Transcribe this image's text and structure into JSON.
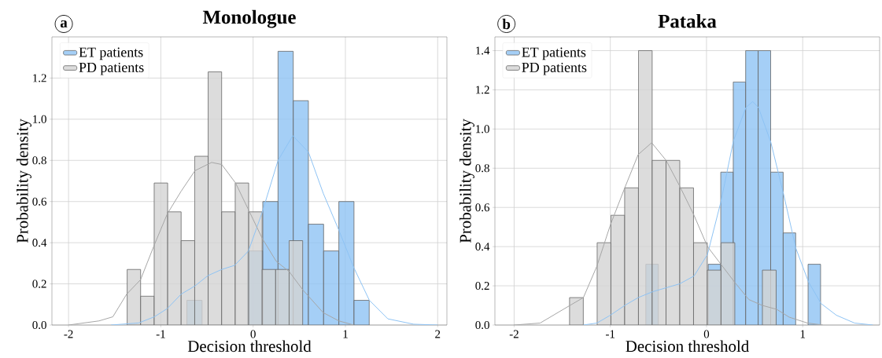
{
  "chart_data": [
    {
      "type": "histogram",
      "title": "Monologue",
      "xlabel": "Decision threshold",
      "ylabel": "Probability density",
      "annotations": [
        "a"
      ],
      "legend": "top left",
      "grid": true,
      "xlim": [
        -2.18,
        2.1
      ],
      "ylim": [
        0,
        1.4
      ],
      "xticks": [
        -2,
        -1,
        0,
        1,
        2
      ],
      "yticks": [
        {
          "value": 0,
          "label": "0.0"
        },
        {
          "value": 0.2,
          "label": "0.2"
        },
        {
          "value": 0.4,
          "label": "0.4"
        },
        {
          "value": 0.6,
          "label": "0.6"
        },
        {
          "value": 0.8,
          "label": "0.8"
        },
        {
          "value": 1.0,
          "label": "1.0"
        },
        {
          "value": 1.2,
          "label": "1.2"
        }
      ],
      "series": [
        {
          "name": "ET patients",
          "color": "#8ec3f4",
          "bins": [
            -0.718,
            -0.553,
            -0.389,
            -0.224,
            -0.059,
            0.105,
            0.27,
            0.435,
            0.599,
            0.764,
            0.929,
            1.093,
            1.258
          ],
          "values": [
            0.12,
            0,
            0,
            0,
            0.36,
            0.6,
            1.33,
            1.09,
            0.49,
            0.36,
            0.6,
            0.12
          ]
        },
        {
          "name": "PD patients",
          "color": "#d3d3d3",
          "bins": [
            -1.365,
            -1.219,
            -1.072,
            -0.926,
            -0.78,
            -0.633,
            -0.487,
            -0.341,
            -0.194,
            -0.048,
            0.098,
            0.244,
            0.39,
            0.537
          ],
          "values": [
            0.27,
            0.14,
            0.69,
            0.55,
            0.41,
            0.82,
            1.23,
            0.55,
            0.69,
            0.55,
            0.27,
            0.27,
            0.41
          ]
        },
        {
          "type": "line",
          "color": "#8ec3f4",
          "x": [
            -1.54,
            -1.24,
            -1.07,
            -0.93,
            -0.78,
            -0.63,
            -0.49,
            -0.34,
            -0.2,
            -0.05,
            0.1,
            0.27,
            0.43,
            0.6,
            0.76,
            0.93,
            1.09,
            1.26,
            1.46,
            1.74,
            2.0
          ],
          "values": [
            0,
            0.01,
            0.04,
            0.08,
            0.15,
            0.19,
            0.24,
            0.27,
            0.29,
            0.36,
            0.55,
            0.8,
            0.92,
            0.84,
            0.64,
            0.46,
            0.28,
            0.12,
            0.03,
            0.004,
            0
          ]
        },
        {
          "type": "line",
          "color": "#a6a6a6",
          "x": [
            -2.0,
            -1.67,
            -1.52,
            -1.37,
            -1.22,
            -1.07,
            -0.93,
            -0.78,
            -0.63,
            -0.45,
            -0.34,
            -0.19,
            -0.05,
            0.1,
            0.25,
            0.39,
            0.54,
            0.76,
            0.93,
            1.09
          ],
          "values": [
            0,
            0.02,
            0.04,
            0.15,
            0.22,
            0.39,
            0.54,
            0.65,
            0.75,
            0.79,
            0.78,
            0.69,
            0.56,
            0.42,
            0.31,
            0.26,
            0.17,
            0.06,
            0.02,
            0
          ]
        }
      ]
    },
    {
      "type": "histogram",
      "title": "Pataka",
      "xlabel": "Decision threshold",
      "ylabel": "Probability density",
      "annotations": [
        "b"
      ],
      "legend": "top left",
      "grid": true,
      "xlim": [
        -2.2,
        1.8
      ],
      "ylim": [
        0,
        1.47
      ],
      "xticks": [
        -2,
        -1,
        0,
        1
      ],
      "yticks": [
        {
          "value": 0,
          "label": "0.0"
        },
        {
          "value": 0.2,
          "label": "0.2"
        },
        {
          "value": 0.4,
          "label": "0.4"
        },
        {
          "value": 0.6,
          "label": "0.6"
        },
        {
          "value": 0.8,
          "label": "0.8"
        },
        {
          "value": 1.0,
          "label": "1.0"
        },
        {
          "value": 1.2,
          "label": "1.2"
        },
        {
          "value": 1.4,
          "label": "1.4"
        }
      ],
      "series": [
        {
          "name": "ET patients",
          "color": "#8ec3f4",
          "bins": [
            -0.631,
            -0.501,
            -0.371,
            -0.242,
            -0.112,
            0.018,
            0.148,
            0.278,
            0.407,
            0.537,
            0.667,
            0.797,
            0.927,
            1.056,
            1.186
          ],
          "values": [
            0.31,
            0,
            0,
            0,
            0,
            0.31,
            0.78,
            1.24,
            1.4,
            1.4,
            0.78,
            0.47,
            0,
            0.31
          ]
        },
        {
          "name": "PD patients",
          "color": "#d3d3d3",
          "bins": [
            -1.424,
            -1.281,
            -1.137,
            -0.994,
            -0.851,
            -0.708,
            -0.565,
            -0.421,
            -0.278,
            -0.135,
            0.008,
            0.151,
            0.294,
            0.438,
            0.581,
            0.724
          ],
          "values": [
            0.14,
            0,
            0.42,
            0.56,
            0.7,
            1.4,
            0.84,
            0.84,
            0.7,
            0.42,
            0.28,
            0.42,
            0,
            0,
            0.28
          ]
        },
        {
          "type": "line",
          "color": "#8ec3f4",
          "x": [
            -1.28,
            -1.14,
            -1.0,
            -0.85,
            -0.71,
            -0.56,
            -0.42,
            -0.28,
            -0.13,
            0.01,
            0.15,
            0.28,
            0.41,
            0.48,
            0.54,
            0.67,
            0.8,
            0.93,
            1.06,
            1.19,
            1.35,
            1.54,
            1.73
          ],
          "values": [
            0,
            0.01,
            0.05,
            0.1,
            0.14,
            0.17,
            0.19,
            0.21,
            0.25,
            0.36,
            0.63,
            0.94,
            1.11,
            1.14,
            1.11,
            0.93,
            0.67,
            0.39,
            0.22,
            0.11,
            0.05,
            0.01,
            0
          ]
        },
        {
          "type": "line",
          "color": "#a6a6a6",
          "x": [
            -2.0,
            -1.73,
            -1.42,
            -1.28,
            -1.14,
            -1.0,
            -0.85,
            -0.71,
            -0.57,
            -0.42,
            -0.28,
            -0.13,
            0.01,
            0.15,
            0.29,
            0.44,
            0.58,
            0.73,
            0.86,
            1.05,
            1.21
          ],
          "values": [
            0,
            0.01,
            0.1,
            0.14,
            0.3,
            0.51,
            0.7,
            0.87,
            0.93,
            0.84,
            0.71,
            0.56,
            0.4,
            0.31,
            0.22,
            0.13,
            0.1,
            0.08,
            0.04,
            0.01,
            0
          ]
        }
      ]
    }
  ]
}
